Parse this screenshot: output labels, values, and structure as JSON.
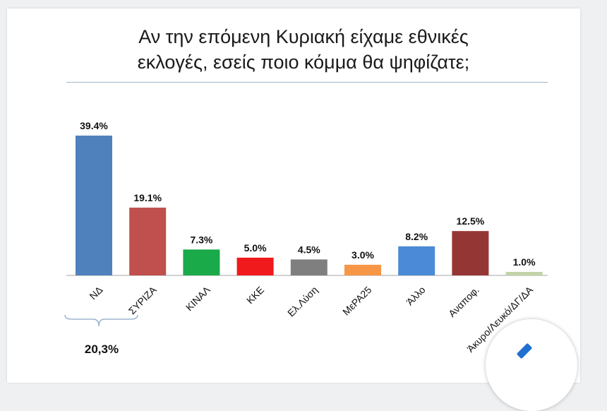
{
  "chart_data": {
    "type": "bar",
    "title_lines": [
      "Αν την επόμενη Κυριακή είχαμε εθνικές",
      "εκλογές, εσείς ποιο κόμμα θα ψηφίζατε;"
    ],
    "categories": [
      "ΝΔ",
      "ΣΥΡΙΖΑ",
      "ΚΙΝΑΛ",
      "ΚΚΕ",
      "Ελ.Λύση",
      "ΜεΡΑ25",
      "Άλλο",
      "Αναποφ.",
      "Άκυρο/Λευκό/ΔΓ/ΔΑ"
    ],
    "values": [
      39.4,
      19.1,
      7.3,
      5.0,
      4.5,
      3.0,
      8.2,
      12.5,
      1.0
    ],
    "value_labels": [
      "39.4%",
      "19.1%",
      "7.3%",
      "5.0%",
      "4.5%",
      "3.0%",
      "8.2%",
      "12.5%",
      "1.0%"
    ],
    "colors": [
      "#4f81bd",
      "#c0504d",
      "#1aaa4a",
      "#f0191b",
      "#7f7f7f",
      "#f79646",
      "#4a8ad6",
      "#943634",
      "#c4d3a8"
    ],
    "ylim": [
      0,
      40
    ],
    "grid": false,
    "annotation": {
      "text": "20,3%",
      "bracket_under": [
        "ΝΔ",
        "ΣΥΡΙΖΑ"
      ]
    }
  }
}
